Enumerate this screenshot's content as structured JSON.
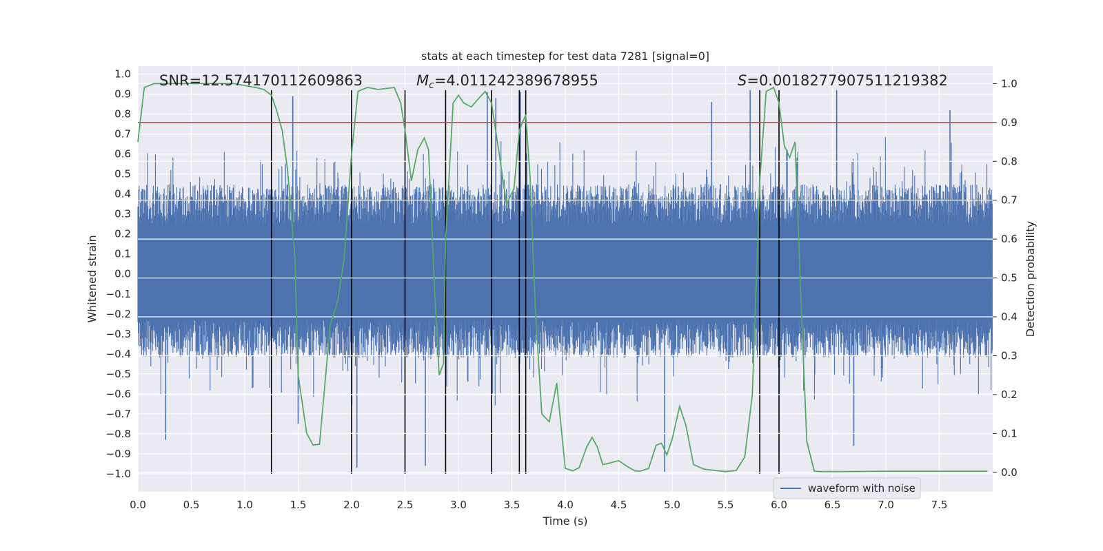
{
  "chart_data": {
    "type": "line",
    "title": "stats at each timestep for test data 7281 [signal=0]",
    "xlabel": "Time (s)",
    "ylabel_left": "Whitened strain",
    "ylabel_right": "Detection probability",
    "xlim": [
      0.0,
      8.0
    ],
    "ylim_left": [
      -1.09,
      1.04
    ],
    "ylim_right": [
      -0.05,
      1.045
    ],
    "x_ticks": [
      0.0,
      0.5,
      1.0,
      1.5,
      2.0,
      2.5,
      3.0,
      3.5,
      4.0,
      4.5,
      5.0,
      5.5,
      6.0,
      6.5,
      7.0,
      7.5
    ],
    "x_tick_labels": [
      "0.0",
      "0.5",
      "1.0",
      "1.5",
      "2.0",
      "2.5",
      "3.0",
      "3.5",
      "4.0",
      "4.5",
      "5.0",
      "5.5",
      "6.0",
      "6.5",
      "7.0",
      "7.5"
    ],
    "y_left_ticks": [
      -1.0,
      -0.9,
      -0.8,
      -0.7,
      -0.6,
      -0.5,
      -0.4,
      -0.3,
      -0.2,
      -0.1,
      0.0,
      0.1,
      0.2,
      0.3,
      0.4,
      0.5,
      0.6,
      0.7,
      0.8,
      0.9,
      1.0
    ],
    "y_left_tick_labels": [
      "−1.0",
      "−0.9",
      "−0.8",
      "−0.7",
      "−0.6",
      "−0.5",
      "−0.4",
      "−0.3",
      "−0.2",
      "−0.1",
      "0.0",
      "0.1",
      "0.2",
      "0.3",
      "0.4",
      "0.5",
      "0.6",
      "0.7",
      "0.8",
      "0.9",
      "1.0"
    ],
    "y_right_ticks": [
      0.0,
      0.1,
      0.2,
      0.3,
      0.4,
      0.5,
      0.6,
      0.7,
      0.8,
      0.9,
      1.0
    ],
    "y_right_tick_labels": [
      "0.0",
      "0.1",
      "0.2",
      "0.3",
      "0.4",
      "0.5",
      "0.6",
      "0.7",
      "0.8",
      "0.9",
      "1.0"
    ],
    "annotations": {
      "snr_label": "SNR=12.574170112609863",
      "mc_prefix": "M",
      "mc_sub": "c",
      "mc_value": "=4.011242389678955",
      "s_prefix": "S",
      "s_value": "=0.0018277907511219382"
    },
    "legend": {
      "label": "waveform with noise",
      "location": "lower-right"
    },
    "threshold_line": {
      "axis": "right",
      "value": 0.9,
      "color": "#c44e52"
    },
    "detection_times": [
      1.25,
      2.0,
      2.5,
      2.88,
      3.31,
      3.57,
      3.63,
      5.82,
      6.0
    ],
    "detection_line_range_left": [
      -1.0,
      0.92
    ],
    "waveform": {
      "name": "waveform with noise",
      "color": "#4c72b0",
      "samples": 2048,
      "envelope": {
        "top_typical": 0.45,
        "bottom_typical": -0.42
      },
      "peaks": [
        {
          "t": 0.26,
          "v": -0.83
        },
        {
          "t": 1.45,
          "v": 0.89
        },
        {
          "t": 1.5,
          "v": -0.75
        },
        {
          "t": 2.05,
          "v": -0.97
        },
        {
          "t": 2.69,
          "v": -0.96
        },
        {
          "t": 3.27,
          "v": 0.91
        },
        {
          "t": 3.35,
          "v": 0.88
        },
        {
          "t": 3.58,
          "v": 0.91
        },
        {
          "t": 4.93,
          "v": -0.99
        },
        {
          "t": 5.37,
          "v": 0.86
        },
        {
          "t": 5.73,
          "v": 0.92
        },
        {
          "t": 6.54,
          "v": 0.92
        },
        {
          "t": 6.7,
          "v": -0.86
        },
        {
          "t": 7.6,
          "v": 0.82
        }
      ]
    },
    "series": [
      {
        "name": "detection probability",
        "axis": "right",
        "color": "#55a868",
        "x": [
          0.0,
          0.06,
          0.15,
          0.3,
          0.5,
          0.7,
          0.9,
          1.0,
          1.1,
          1.18,
          1.25,
          1.3,
          1.35,
          1.4,
          1.47,
          1.5,
          1.58,
          1.64,
          1.7,
          1.8,
          1.87,
          1.93,
          2.0,
          2.06,
          2.1,
          2.15,
          2.25,
          2.4,
          2.46,
          2.5,
          2.56,
          2.62,
          2.68,
          2.72,
          2.78,
          2.82,
          2.86,
          2.88,
          2.95,
          3.0,
          3.05,
          3.12,
          3.2,
          3.25,
          3.31,
          3.37,
          3.45,
          3.52,
          3.57,
          3.63,
          3.67,
          3.72,
          3.78,
          3.85,
          3.92,
          4.0,
          4.07,
          4.13,
          4.2,
          4.25,
          4.3,
          4.35,
          4.43,
          4.5,
          4.58,
          4.65,
          4.7,
          4.78,
          4.85,
          4.9,
          4.95,
          5.0,
          5.07,
          5.13,
          5.2,
          5.3,
          5.5,
          5.6,
          5.68,
          5.75,
          5.82,
          5.88,
          5.95,
          6.0,
          6.05,
          6.1,
          6.15,
          6.2,
          6.26,
          6.33,
          6.4,
          6.6,
          7.0,
          7.2,
          7.5,
          7.7,
          7.95
        ],
        "values": [
          0.85,
          0.99,
          1.0,
          1.0,
          1.0,
          1.0,
          1.0,
          0.995,
          0.99,
          0.985,
          0.97,
          0.93,
          0.88,
          0.78,
          0.55,
          0.25,
          0.1,
          0.07,
          0.072,
          0.38,
          0.44,
          0.55,
          0.82,
          0.98,
          0.985,
          0.99,
          0.985,
          0.99,
          0.95,
          0.88,
          0.75,
          0.83,
          0.86,
          0.83,
          0.45,
          0.25,
          0.28,
          0.6,
          0.95,
          0.97,
          0.95,
          0.94,
          0.965,
          0.98,
          0.95,
          0.84,
          0.69,
          0.73,
          0.88,
          0.92,
          0.76,
          0.42,
          0.15,
          0.13,
          0.23,
          0.01,
          0.004,
          0.012,
          0.065,
          0.09,
          0.065,
          0.02,
          0.025,
          0.03,
          0.015,
          0.004,
          0.003,
          0.01,
          0.07,
          0.075,
          0.045,
          0.085,
          0.17,
          0.12,
          0.02,
          0.008,
          0.002,
          0.005,
          0.04,
          0.2,
          0.75,
          0.98,
          0.99,
          0.95,
          0.84,
          0.81,
          0.85,
          0.48,
          0.08,
          0.003,
          0.002,
          0.002,
          0.003,
          0.003,
          0.003,
          0.003,
          0.003
        ]
      }
    ]
  }
}
